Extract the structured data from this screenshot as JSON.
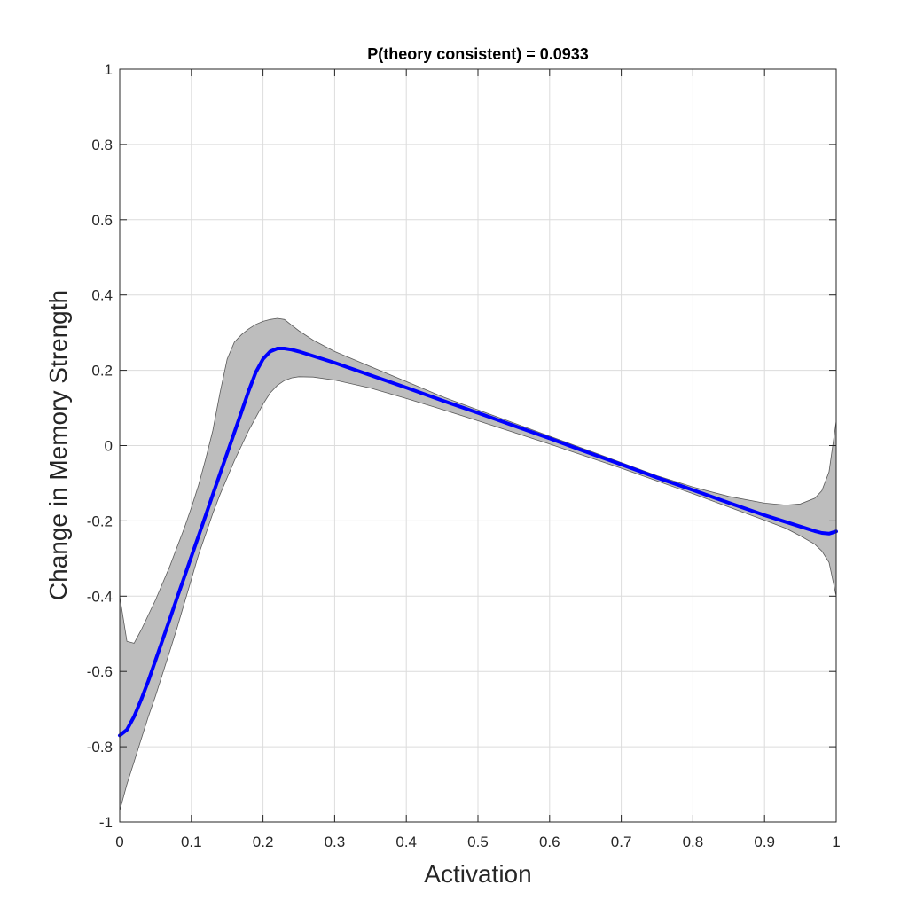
{
  "chart_data": {
    "type": "line",
    "title": "P(theory consistent) = 0.0933",
    "xlabel": "Activation",
    "ylabel": "Change in Memory Strength",
    "xlim": [
      0,
      1
    ],
    "ylim": [
      -1,
      1
    ],
    "grid": true,
    "xticks": [
      "0",
      "0.1",
      "0.2",
      "0.3",
      "0.4",
      "0.5",
      "0.6",
      "0.7",
      "0.8",
      "0.9",
      "1"
    ],
    "yticks": [
      "-1",
      "-0.8",
      "-0.6",
      "-0.4",
      "-0.2",
      "0",
      "0.2",
      "0.4",
      "0.6",
      "0.8",
      "1"
    ],
    "series": [
      {
        "color": "#0000ff",
        "style": "solid-thick",
        "x": [
          0,
          0.01,
          0.02,
          0.03,
          0.04,
          0.05,
          0.06,
          0.07,
          0.08,
          0.09,
          0.1,
          0.11,
          0.12,
          0.13,
          0.14,
          0.15,
          0.16,
          0.17,
          0.18,
          0.19,
          0.2,
          0.21,
          0.22,
          0.23,
          0.24,
          0.25,
          0.27,
          0.3,
          0.35,
          0.4,
          0.45,
          0.5,
          0.55,
          0.6,
          0.65,
          0.7,
          0.75,
          0.8,
          0.85,
          0.9,
          0.93,
          0.95,
          0.97,
          0.98,
          0.99,
          1.0
        ],
        "y": [
          -0.77,
          -0.755,
          -0.72,
          -0.675,
          -0.625,
          -0.57,
          -0.515,
          -0.46,
          -0.405,
          -0.35,
          -0.295,
          -0.24,
          -0.185,
          -0.13,
          -0.075,
          -0.02,
          0.035,
          0.09,
          0.145,
          0.195,
          0.23,
          0.25,
          0.258,
          0.258,
          0.255,
          0.25,
          0.238,
          0.22,
          0.187,
          0.154,
          0.12,
          0.087,
          0.053,
          0.019,
          -0.016,
          -0.05,
          -0.085,
          -0.118,
          -0.152,
          -0.185,
          -0.203,
          -0.215,
          -0.227,
          -0.232,
          -0.234,
          -0.228
        ]
      }
    ],
    "band": {
      "color": "#bdbdbd",
      "edge_color": "#5a5a5a",
      "x": [
        0,
        0.01,
        0.02,
        0.03,
        0.04,
        0.05,
        0.06,
        0.07,
        0.08,
        0.09,
        0.1,
        0.11,
        0.12,
        0.13,
        0.14,
        0.15,
        0.16,
        0.17,
        0.18,
        0.19,
        0.2,
        0.21,
        0.22,
        0.23,
        0.24,
        0.25,
        0.27,
        0.3,
        0.35,
        0.4,
        0.45,
        0.5,
        0.55,
        0.6,
        0.65,
        0.7,
        0.75,
        0.8,
        0.85,
        0.9,
        0.93,
        0.95,
        0.97,
        0.98,
        0.99,
        1.0
      ],
      "upper": [
        -0.4,
        -0.52,
        -0.525,
        -0.49,
        -0.45,
        -0.41,
        -0.365,
        -0.32,
        -0.27,
        -0.22,
        -0.165,
        -0.105,
        -0.035,
        0.04,
        0.14,
        0.23,
        0.275,
        0.295,
        0.31,
        0.322,
        0.33,
        0.335,
        0.338,
        0.335,
        0.32,
        0.305,
        0.28,
        0.25,
        0.21,
        0.17,
        0.13,
        0.095,
        0.06,
        0.025,
        -0.01,
        -0.045,
        -0.08,
        -0.11,
        -0.135,
        -0.153,
        -0.158,
        -0.155,
        -0.14,
        -0.12,
        -0.07,
        0.065
      ],
      "lower": [
        -0.97,
        -0.9,
        -0.84,
        -0.78,
        -0.72,
        -0.665,
        -0.605,
        -0.545,
        -0.485,
        -0.42,
        -0.355,
        -0.29,
        -0.235,
        -0.18,
        -0.13,
        -0.085,
        -0.04,
        0.0,
        0.04,
        0.075,
        0.11,
        0.14,
        0.16,
        0.173,
        0.18,
        0.183,
        0.182,
        0.174,
        0.153,
        0.125,
        0.096,
        0.066,
        0.035,
        0.004,
        -0.028,
        -0.06,
        -0.094,
        -0.128,
        -0.163,
        -0.198,
        -0.22,
        -0.24,
        -0.262,
        -0.28,
        -0.31,
        -0.4
      ]
    }
  }
}
